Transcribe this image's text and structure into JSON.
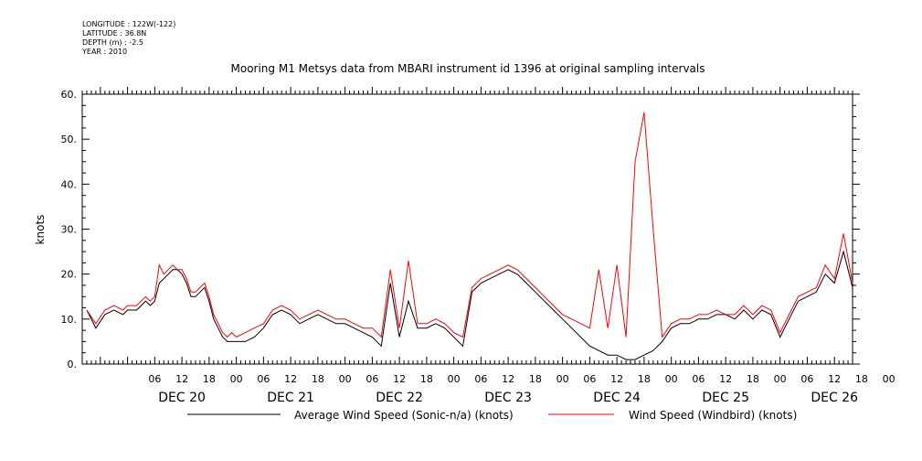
{
  "meta": {
    "longitude": "LONGITUDE : 122W(-122)",
    "latitude": "LATITUDE : 36.8N",
    "depth": "DEPTH (m) : -2.5",
    "year": "YEAR : 2010"
  },
  "chart_data": {
    "type": "line",
    "title": "Mooring M1 Metsys data from MBARI instrument id 1396 at original sampling intervals",
    "ylabel": "knots",
    "xlabel": "",
    "ylim": [
      0,
      60
    ],
    "xlim_hours": [
      -10,
      160
    ],
    "yticks": [
      "0.",
      "10.",
      "20.",
      "30.",
      "40.",
      "50.",
      "60."
    ],
    "yticks_values": [
      0,
      10,
      20,
      30,
      40,
      50,
      60
    ],
    "hour_ticks": [
      "06",
      "12",
      "18",
      "00",
      "06",
      "12",
      "18",
      "00",
      "06",
      "12",
      "18",
      "00",
      "06",
      "12",
      "18",
      "00",
      "06",
      "12",
      "18",
      "00",
      "06",
      "12",
      "18",
      "00",
      "06",
      "12",
      "18",
      "00"
    ],
    "day_labels": [
      "DEC 20",
      "DEC 21",
      "DEC 22",
      "DEC 23",
      "DEC 24",
      "DEC 25",
      "DEC 26"
    ],
    "legend": [
      {
        "name": "Average Wind Speed (Sonic-n/a) (knots)",
        "color": "#000000"
      },
      {
        "name": "Wind Speed (Windbird) (knots)",
        "color": "#ff0000"
      }
    ],
    "series": [
      {
        "name": "Average Wind Speed (Sonic-n/a) (knots)",
        "color": "#000000",
        "x": [
          -9,
          -7,
          -5,
          -3,
          -1,
          0,
          1,
          2,
          3,
          4,
          5,
          6,
          7,
          8,
          9,
          10,
          11,
          12,
          13,
          14,
          15,
          16,
          17,
          18,
          19,
          20,
          21,
          22,
          23,
          24,
          26,
          28,
          30,
          32,
          34,
          36,
          38,
          40,
          42,
          44,
          46,
          48,
          50,
          52,
          54,
          56,
          58,
          60,
          62,
          64,
          66,
          68,
          70,
          72,
          74,
          76,
          78,
          80,
          82,
          84,
          86,
          88,
          90,
          92,
          94,
          96,
          98,
          100,
          102,
          104,
          106,
          108,
          110,
          112,
          114,
          116,
          118,
          120,
          122,
          124,
          126,
          128,
          130,
          132,
          134,
          136,
          138,
          140,
          142,
          144,
          146,
          148,
          150,
          152,
          154,
          156,
          158,
          160
        ],
        "y": [
          12,
          8,
          11,
          12,
          11,
          12,
          12,
          12,
          13,
          14,
          13,
          14,
          18,
          19,
          20,
          21,
          21,
          20,
          18,
          15,
          15,
          16,
          17,
          14,
          10,
          8,
          6,
          5,
          5,
          5,
          5,
          6,
          8,
          11,
          12,
          11,
          9,
          10,
          11,
          10,
          9,
          9,
          8,
          7,
          6,
          4,
          18,
          6,
          14,
          8,
          8,
          9,
          8,
          6,
          4,
          16,
          18,
          19,
          20,
          21,
          20,
          18,
          16,
          14,
          12,
          10,
          8,
          6,
          4,
          3,
          2,
          2,
          1,
          1,
          2,
          3,
          5,
          8,
          9,
          9,
          10,
          10,
          11,
          11,
          10,
          12,
          10,
          12,
          11,
          6,
          10,
          14,
          15,
          16,
          20,
          18,
          25,
          17
        ]
      },
      {
        "name": "Wind Speed (Windbird) (knots)",
        "color": "#ff0000",
        "x": [
          -9,
          -7,
          -5,
          -3,
          -1,
          0,
          1,
          2,
          3,
          4,
          5,
          6,
          7,
          8,
          9,
          10,
          11,
          12,
          13,
          14,
          15,
          16,
          17,
          18,
          19,
          20,
          21,
          22,
          23,
          24,
          26,
          28,
          30,
          32,
          34,
          36,
          38,
          40,
          42,
          44,
          46,
          48,
          50,
          52,
          54,
          56,
          58,
          60,
          62,
          64,
          66,
          68,
          70,
          72,
          74,
          76,
          78,
          80,
          82,
          84,
          86,
          88,
          90,
          92,
          94,
          96,
          98,
          100,
          102,
          104,
          106,
          108,
          110,
          112,
          114,
          116,
          118,
          120,
          122,
          124,
          126,
          128,
          130,
          132,
          134,
          136,
          138,
          140,
          142,
          144,
          146,
          148,
          150,
          152,
          154,
          156,
          158,
          160
        ],
        "y": [
          12,
          9,
          12,
          13,
          12,
          13,
          13,
          13,
          14,
          15,
          14,
          15,
          22,
          20,
          21,
          22,
          21,
          21,
          19,
          16,
          16,
          17,
          18,
          15,
          11,
          9,
          7,
          6,
          7,
          6,
          7,
          8,
          9,
          12,
          13,
          12,
          10,
          11,
          12,
          11,
          10,
          10,
          9,
          8,
          8,
          6,
          21,
          8,
          23,
          9,
          9,
          10,
          9,
          7,
          6,
          17,
          19,
          20,
          21,
          22,
          21,
          19,
          17,
          15,
          13,
          11,
          10,
          9,
          8,
          21,
          8,
          22,
          6,
          45,
          56,
          30,
          6,
          9,
          10,
          10,
          11,
          11,
          12,
          11,
          11,
          13,
          11,
          13,
          12,
          7,
          11,
          15,
          16,
          17,
          22,
          19,
          29,
          18
        ]
      }
    ]
  }
}
